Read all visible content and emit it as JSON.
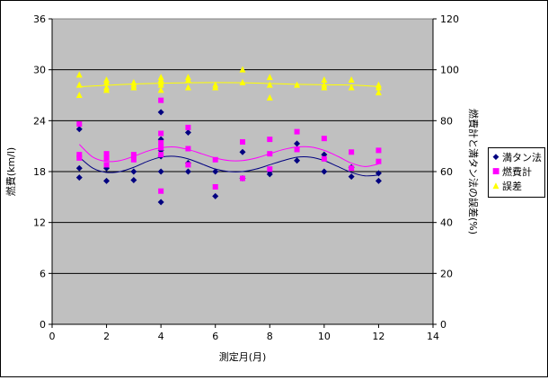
{
  "chart_data": {
    "type": "scatter",
    "xlabel": "測定月(月)",
    "ylabel": "燃費(km/l)",
    "y2label": "燃費計と満タン法の誤差(%)",
    "xlim": [
      0,
      14
    ],
    "ylim": [
      0,
      36
    ],
    "y2lim": [
      0,
      120
    ],
    "xticks": [
      "0",
      "2",
      "4",
      "6",
      "8",
      "10",
      "12",
      "14"
    ],
    "yticks": [
      "0",
      "6",
      "12",
      "18",
      "24",
      "30",
      "36"
    ],
    "y2ticks": [
      "0",
      "20",
      "40",
      "60",
      "80",
      "100",
      "120"
    ],
    "grid": true,
    "legend_position": "right",
    "plot_background": "#c0c0c0",
    "series": [
      {
        "name": "満タン法",
        "axis": "left",
        "marker": "diamond",
        "color": "#000080",
        "points": [
          [
            1,
            23.0
          ],
          [
            1,
            18.4
          ],
          [
            1,
            17.3
          ],
          [
            2,
            18.4
          ],
          [
            2,
            16.9
          ],
          [
            3,
            18.0
          ],
          [
            3,
            17.0
          ],
          [
            4,
            25.0
          ],
          [
            4,
            21.8
          ],
          [
            4,
            20.5
          ],
          [
            4,
            19.8
          ],
          [
            4,
            18.0
          ],
          [
            4,
            14.4
          ],
          [
            5,
            22.6
          ],
          [
            5,
            19.0
          ],
          [
            5,
            18.0
          ],
          [
            6,
            18.0
          ],
          [
            6,
            15.1
          ],
          [
            7,
            20.3
          ],
          [
            7,
            17.2
          ],
          [
            8,
            18.0
          ],
          [
            8,
            17.7
          ],
          [
            9,
            21.3
          ],
          [
            9,
            19.3
          ],
          [
            10,
            20.0
          ],
          [
            10,
            18.0
          ],
          [
            11,
            18.5
          ],
          [
            11,
            17.4
          ],
          [
            12,
            17.8
          ],
          [
            12,
            16.9
          ]
        ],
        "trend": [
          [
            1,
            19.7
          ],
          [
            1.5,
            18.4
          ],
          [
            2,
            17.9
          ],
          [
            2.5,
            18.0
          ],
          [
            3,
            18.5
          ],
          [
            3.5,
            19.2
          ],
          [
            4,
            19.7
          ],
          [
            4.5,
            19.8
          ],
          [
            5,
            19.5
          ],
          [
            5.5,
            18.9
          ],
          [
            6,
            18.3
          ],
          [
            6.5,
            18.0
          ],
          [
            7,
            18.0
          ],
          [
            7.5,
            18.3
          ],
          [
            8,
            18.8
          ],
          [
            8.5,
            19.3
          ],
          [
            9,
            19.7
          ],
          [
            9.5,
            19.7
          ],
          [
            10,
            19.3
          ],
          [
            10.5,
            18.6
          ],
          [
            11,
            17.9
          ],
          [
            11.5,
            17.5
          ],
          [
            12,
            17.6
          ]
        ]
      },
      {
        "name": "燃費計",
        "axis": "left",
        "marker": "square",
        "color": "#ff00ff",
        "points": [
          [
            1,
            23.6
          ],
          [
            1,
            20.0
          ],
          [
            1,
            19.6
          ],
          [
            2,
            20.1
          ],
          [
            2,
            19.6
          ],
          [
            2,
            18.8
          ],
          [
            3,
            20.0
          ],
          [
            3,
            19.4
          ],
          [
            4,
            26.4
          ],
          [
            4,
            22.5
          ],
          [
            4,
            21.4
          ],
          [
            4,
            20.8
          ],
          [
            4,
            20.0
          ],
          [
            4,
            15.7
          ],
          [
            5,
            23.2
          ],
          [
            5,
            20.7
          ],
          [
            5,
            18.8
          ],
          [
            6,
            19.4
          ],
          [
            6,
            16.2
          ],
          [
            7,
            21.5
          ],
          [
            7,
            17.2
          ],
          [
            8,
            21.8
          ],
          [
            8,
            20.1
          ],
          [
            8,
            18.3
          ],
          [
            9,
            22.7
          ],
          [
            9,
            20.6
          ],
          [
            10,
            21.9
          ],
          [
            10,
            19.5
          ],
          [
            11,
            20.3
          ],
          [
            11,
            18.4
          ],
          [
            12,
            20.5
          ],
          [
            12,
            19.2
          ]
        ],
        "trend": [
          [
            1,
            21.2
          ],
          [
            1.5,
            19.7
          ],
          [
            2,
            19.2
          ],
          [
            2.5,
            19.3
          ],
          [
            3,
            19.8
          ],
          [
            3.5,
            20.4
          ],
          [
            4,
            20.8
          ],
          [
            4.5,
            20.9
          ],
          [
            5,
            20.6
          ],
          [
            5.5,
            20.1
          ],
          [
            6,
            19.6
          ],
          [
            6.5,
            19.3
          ],
          [
            7,
            19.3
          ],
          [
            7.5,
            19.6
          ],
          [
            8,
            20.1
          ],
          [
            8.5,
            20.6
          ],
          [
            9,
            20.9
          ],
          [
            9.5,
            20.9
          ],
          [
            10,
            20.5
          ],
          [
            10.5,
            19.8
          ],
          [
            11,
            19.0
          ],
          [
            11.5,
            18.6
          ],
          [
            12,
            18.9
          ]
        ]
      },
      {
        "name": "誤差",
        "axis": "right",
        "marker": "triangle",
        "color": "#ffff00",
        "points": [
          [
            1,
            98
          ],
          [
            1,
            94
          ],
          [
            1,
            90
          ],
          [
            2,
            96
          ],
          [
            2,
            95
          ],
          [
            2,
            93
          ],
          [
            2,
            92
          ],
          [
            3,
            95
          ],
          [
            3,
            94
          ],
          [
            3,
            93
          ],
          [
            4,
            97
          ],
          [
            4,
            96
          ],
          [
            4,
            95
          ],
          [
            4,
            94
          ],
          [
            4,
            92
          ],
          [
            5,
            97
          ],
          [
            5,
            96
          ],
          [
            5,
            93
          ],
          [
            6,
            94
          ],
          [
            6,
            93
          ],
          [
            7,
            100
          ],
          [
            7,
            95
          ],
          [
            8,
            97
          ],
          [
            8,
            94
          ],
          [
            8,
            89
          ],
          [
            9,
            94
          ],
          [
            10,
            96
          ],
          [
            10,
            94
          ],
          [
            10,
            93
          ],
          [
            11,
            96
          ],
          [
            11,
            93
          ],
          [
            12,
            94
          ],
          [
            12,
            93
          ],
          [
            12,
            91
          ]
        ],
        "trend": [
          [
            1,
            93.3
          ],
          [
            2,
            93.9
          ],
          [
            3,
            94.4
          ],
          [
            4,
            94.7
          ],
          [
            5,
            94.9
          ],
          [
            6,
            95.0
          ],
          [
            7,
            94.9
          ],
          [
            8,
            94.6
          ],
          [
            9,
            94.3
          ],
          [
            10,
            94.1
          ],
          [
            11,
            94.0
          ],
          [
            12,
            93.4
          ]
        ]
      }
    ]
  }
}
